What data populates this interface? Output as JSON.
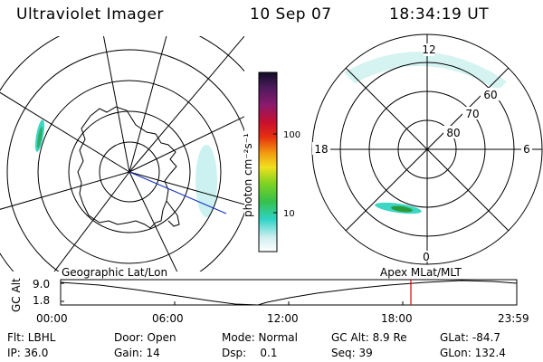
{
  "header": {
    "instrument": "Ultraviolet Imager",
    "date": "10 Sep 07",
    "time": "18:34:19 UT"
  },
  "colorbar": {
    "unit_label": "photon cm⁻²s⁻¹",
    "ticks": [
      "100",
      "10"
    ]
  },
  "polar_plot": {
    "mlt_labels": {
      "top": "12",
      "left": "18",
      "right": "6",
      "bottom": "0"
    },
    "mlat_labels": [
      "60",
      "70",
      "80"
    ]
  },
  "timeline": {
    "left_label": "Geographic Lat/Lon",
    "right_label": "Apex MLat/MLT",
    "axis_label": "GC Alt",
    "y_ticks": [
      "9.0",
      "1.8"
    ],
    "x_ticks": [
      "00:00",
      "06:00",
      "12:00",
      "18:00",
      "23:59"
    ],
    "marker_color": "#e00000"
  },
  "footer": {
    "flt": "Flt: LBHL",
    "door": "Door: Open",
    "mode": "Mode: Normal",
    "gcalt": "GC Alt: 8.9 Re",
    "glat": "GLat: -84.7",
    "ip": "IP: 36.0",
    "gain": "Gain: 14",
    "dsp": "Dsp:    0.1",
    "seq": "Seq: 39",
    "glon": "GLon: 132.4"
  },
  "colors": {
    "aurora": "#3cd6c4",
    "aurora_core": "#2a9a3a",
    "orbit_track": "#1030c0"
  }
}
